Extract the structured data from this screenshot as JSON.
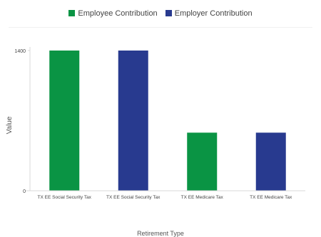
{
  "chart_data": {
    "type": "bar",
    "categories": [
      "TX EE Social Security Tax",
      "TX EE Social Security Tax",
      "TX EE Medicare Tax",
      "TX EE Medicare Tax"
    ],
    "series": [
      {
        "name": "Employee Contribution",
        "color": "#0a9444",
        "values": [
          1400,
          null,
          580,
          null
        ]
      },
      {
        "name": "Employer Contribution",
        "color": "#283a8f",
        "values": [
          null,
          1400,
          null,
          580
        ]
      }
    ],
    "bar_colors": [
      "#0a9444",
      "#283a8f",
      "#0a9444",
      "#283a8f"
    ],
    "values": [
      1400,
      1400,
      580,
      580
    ],
    "title": "",
    "xlabel": "Retirement Type",
    "ylabel": "Value",
    "ylim": [
      0,
      1400
    ],
    "yticks": [
      "0",
      "1400"
    ],
    "grid": false,
    "legend_position": "top-center"
  }
}
